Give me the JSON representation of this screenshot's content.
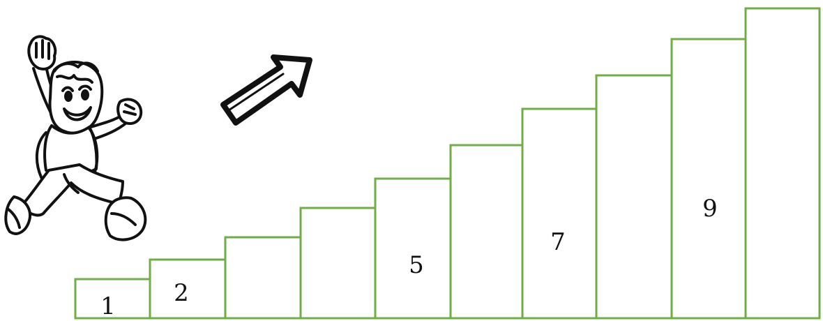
{
  "colors": {
    "stair_outline": "#70ad47",
    "ink": "#111111",
    "background": "#ffffff"
  },
  "illustration": {
    "character": "jumping-child-icon",
    "arrow": "up-right-arrow-icon"
  },
  "steps": [
    {
      "number": 1,
      "label": "1",
      "labeled": true
    },
    {
      "number": 2,
      "label": "2",
      "labeled": true
    },
    {
      "number": 3,
      "label": "",
      "labeled": false
    },
    {
      "number": 4,
      "label": "",
      "labeled": false
    },
    {
      "number": 5,
      "label": "5",
      "labeled": true
    },
    {
      "number": 6,
      "label": "",
      "labeled": false
    },
    {
      "number": 7,
      "label": "7",
      "labeled": true
    },
    {
      "number": 8,
      "label": "",
      "labeled": false
    },
    {
      "number": 9,
      "label": "9",
      "labeled": true
    },
    {
      "number": 10,
      "label": "",
      "labeled": false
    }
  ]
}
